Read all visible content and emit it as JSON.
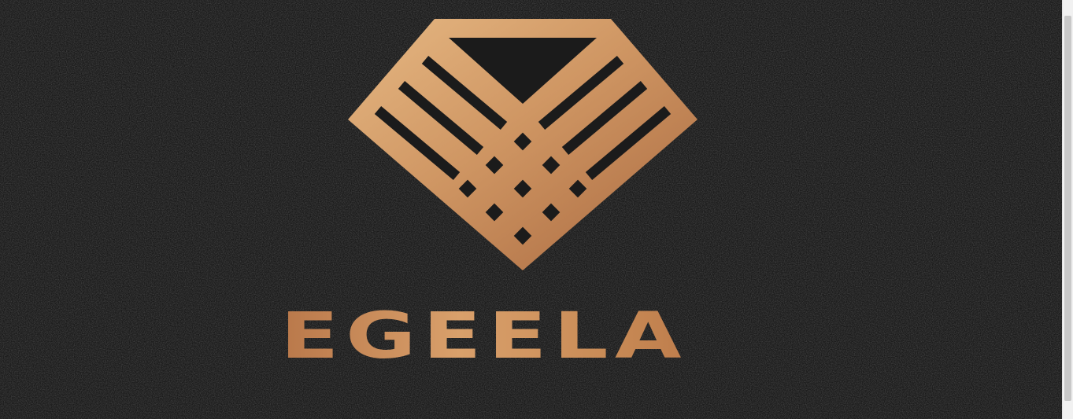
{
  "brand": {
    "name": "EGEELA",
    "logo_icon": "diamond-weave-icon"
  },
  "colors": {
    "background": "#1b1b1b",
    "gold_light": "#e0b07a",
    "gold_mid": "#c88e5a",
    "gold_dark": "#a8683e"
  }
}
